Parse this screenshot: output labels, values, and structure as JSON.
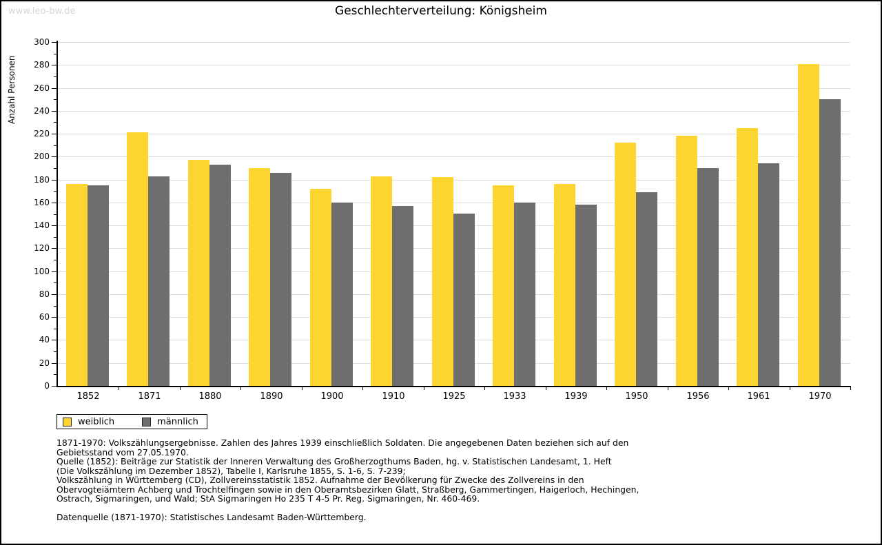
{
  "watermark": "www.leo-bw.de",
  "title": "Geschlechterverteilung: Königsheim",
  "ylabel": "Anzahl Personen",
  "legend": [
    {
      "label": "weiblich",
      "color": "#FCD530"
    },
    {
      "label": "männlich",
      "color": "#6E6E6E"
    }
  ],
  "chart_data": {
    "type": "bar",
    "title": "Geschlechterverteilung: Königsheim",
    "xlabel": "",
    "ylabel": "Anzahl Personen",
    "categories": [
      "1852",
      "1871",
      "1880",
      "1890",
      "1900",
      "1910",
      "1925",
      "1933",
      "1939",
      "1950",
      "1956",
      "1961",
      "1970"
    ],
    "series": [
      {
        "name": "weiblich",
        "color": "#FCD530",
        "values": [
          176,
          221,
          197,
          190,
          172,
          183,
          182,
          175,
          176,
          212,
          218,
          225,
          281
        ]
      },
      {
        "name": "männlich",
        "color": "#6E6E6E",
        "values": [
          175,
          183,
          193,
          186,
          160,
          157,
          150,
          160,
          158,
          169,
          190,
          194,
          250
        ]
      }
    ],
    "ylim": [
      0,
      300
    ],
    "ytick_major": 20,
    "ytick_minor": 10,
    "grid": true,
    "legend_position": "bottom-left"
  },
  "footnotes": [
    "1871-1970: Volkszählungsergebnisse. Zahlen des Jahres 1939 einschließlich Soldaten. Die angegebenen Daten beziehen sich auf den",
    "Gebietsstand vom 27.05.1970.",
    "Quelle (1852): Beiträge zur Statistik der Inneren Verwaltung des Großherzogthums Baden, hg. v. Statistischen Landesamt, 1. Heft",
    "(Die Volkszählung im Dezember 1852), Tabelle I, Karlsruhe 1855, S. 1-6, S. 7-239;",
    "Volkszählung in Württemberg (CD), Zollvereinsstatistik 1852. Aufnahme der Bevölkerung für Zwecke des Zollvereins in den",
    "Obervogteiämtern Achberg und Trochtelfingen sowie in den Oberamtsbezirken Glatt, Straßberg, Gammertingen, Haigerloch, Hechingen,",
    "Ostrach, Sigmaringen, und Wald; StA Sigmaringen Ho 235 T 4-5 Pr. Reg. Sigmaringen, Nr. 460-469."
  ],
  "datasource": "Datenquelle (1871-1970): Statistisches Landesamt Baden-Württemberg.",
  "colors": {
    "grid": "#DDDDDD",
    "axis": "#000000",
    "watermark": "#D6D6D6",
    "background": "#FFFFFF",
    "border": "#000000"
  }
}
